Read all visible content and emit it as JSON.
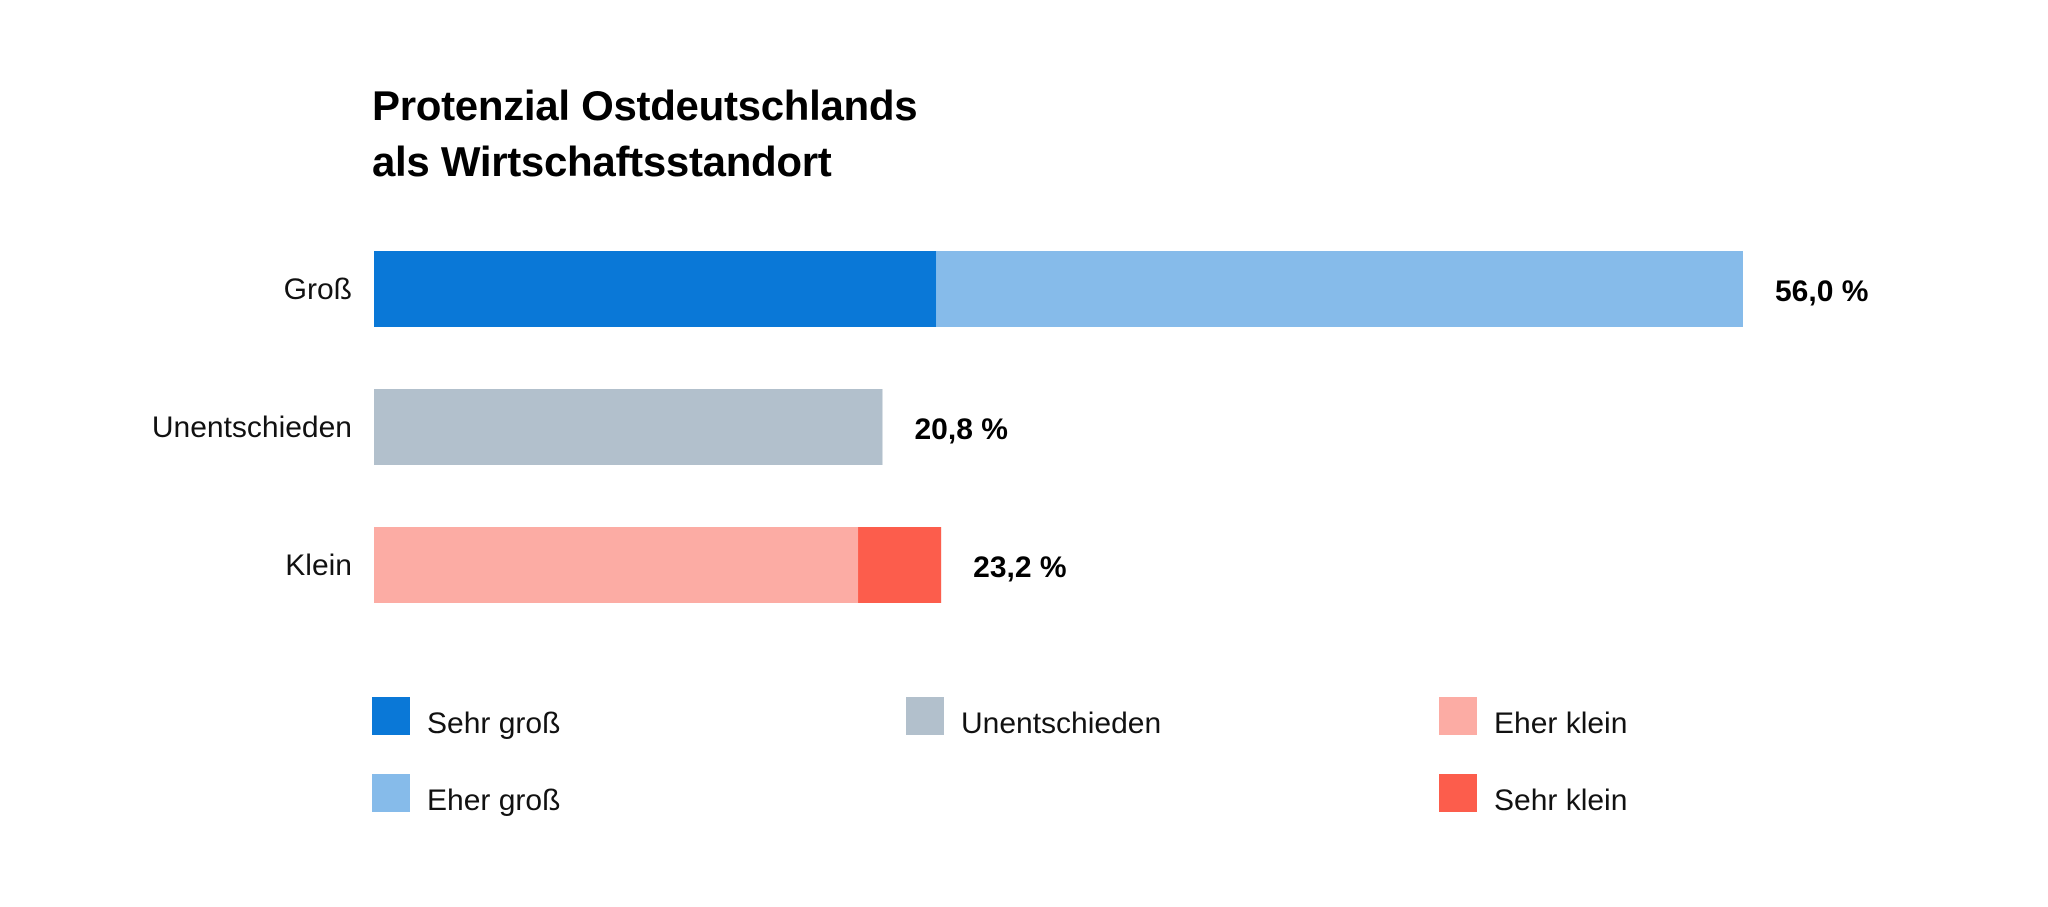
{
  "chart_data": {
    "type": "bar",
    "orientation": "horizontal",
    "stacked": true,
    "title_lines": [
      "Protenzial Ostdeutschlands",
      "als Wirtschaftsstandort"
    ],
    "categories": [
      "Groß",
      "Unentschieden",
      "Klein"
    ],
    "totals": [
      56.0,
      20.8,
      23.2
    ],
    "total_labels": [
      "56,0 %",
      "20,8 %",
      "23,2 %"
    ],
    "series": [
      {
        "name": "Sehr groß",
        "color": "#0a78d7",
        "values": [
          23.0,
          0,
          0
        ]
      },
      {
        "name": "Eher groß",
        "color": "#86bbea",
        "values": [
          33.0,
          0,
          0
        ]
      },
      {
        "name": "Unentschieden",
        "color": "#b2c0cc",
        "values": [
          0,
          20.8,
          0
        ]
      },
      {
        "name": "Eher klein",
        "color": "#fcaca4",
        "values": [
          0,
          0,
          19.8
        ]
      },
      {
        "name": "Sehr klein",
        "color": "#fc5d4c",
        "values": [
          0,
          0,
          3.4
        ]
      }
    ],
    "xlim": [
      0,
      56.0
    ],
    "grid": false,
    "legend_position": "bottom"
  }
}
